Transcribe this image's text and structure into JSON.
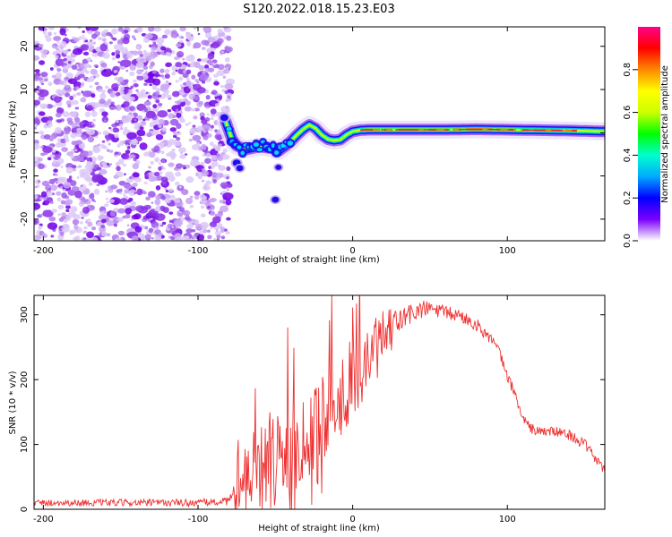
{
  "figure": {
    "title": "S120.2022.018.15.23.E03"
  },
  "chart_data": [
    {
      "type": "heatmap",
      "name": "spectrogram",
      "xlabel": "Height of straight line (km)",
      "ylabel": "Frequency (Hz)",
      "xlim": [
        -206,
        163
      ],
      "ylim": [
        -25,
        24.5
      ],
      "xticks": [
        -200,
        -100,
        0,
        100
      ],
      "yticks": [
        -20,
        -10,
        0,
        10,
        20
      ],
      "noise_region_x": [
        -206,
        -82
      ],
      "ridge": {
        "x": [
          -82,
          -78,
          -75,
          -72,
          -68,
          -64,
          -60,
          -56,
          -52,
          -48,
          -44,
          -40,
          -36,
          -32,
          -28,
          -24,
          -20,
          -16,
          -12,
          -8,
          -4,
          0,
          5,
          10,
          20,
          40,
          60,
          80,
          100,
          120,
          140,
          163
        ],
        "y": [
          2.5,
          -1.5,
          -3,
          -3.5,
          -3.8,
          -3.5,
          -3.2,
          -3.4,
          -3.6,
          -4.2,
          -3.2,
          -2,
          -0.5,
          0.8,
          1.8,
          1,
          -0.5,
          -1.5,
          -1.8,
          -1.6,
          -0.5,
          0.3,
          0.6,
          0.7,
          0.7,
          0.7,
          0.7,
          0.8,
          0.7,
          0.6,
          0.5,
          0.3
        ]
      },
      "spots": [
        {
          "x": -75,
          "y": -7,
          "amplitude": 0.2
        },
        {
          "x": -73,
          "y": -8.2,
          "amplitude": 0.15
        },
        {
          "x": -50,
          "y": -15.5,
          "amplitude": 0.15
        },
        {
          "x": -83,
          "y": 3.5,
          "amplitude": 0.2
        },
        {
          "x": -48,
          "y": -8,
          "amplitude": 0.1
        }
      ],
      "colorbar": {
        "label": "Normalized spectral amplitude",
        "range": [
          0,
          1
        ],
        "ticks": [
          "0.0",
          "0.2",
          "0.4",
          "0.6",
          "0.8"
        ],
        "colors": [
          "#ffffff",
          "#7a00ff",
          "#0000ff",
          "#00aaff",
          "#00ffcc",
          "#00ff00",
          "#ccff00",
          "#ffff00",
          "#ff8800",
          "#ff0000",
          "#ff0088"
        ]
      }
    },
    {
      "type": "line",
      "name": "snr",
      "xlabel": "Height of straight line (km)",
      "ylabel": "SNR (10 * v/v)",
      "xlim": [
        -206,
        163
      ],
      "ylim": [
        0,
        330
      ],
      "xticks": [
        -200,
        -100,
        0,
        100
      ],
      "yticks": [
        0,
        100,
        200,
        300
      ],
      "color": "#ee3030",
      "envelope": {
        "x": [
          -206,
          -150,
          -100,
          -80,
          -72,
          -68,
          -60,
          -50,
          -40,
          -30,
          -20,
          -10,
          0,
          10,
          20,
          30,
          40,
          50,
          60,
          70,
          80,
          90,
          95,
          100,
          105,
          110,
          115,
          120,
          130,
          140,
          150,
          163
        ],
        "y": [
          10,
          10,
          10,
          12,
          25,
          55,
          70,
          80,
          95,
          115,
          150,
          175,
          200,
          230,
          262,
          290,
          305,
          310,
          303,
          298,
          285,
          262,
          240,
          205,
          178,
          140,
          125,
          120,
          120,
          115,
          100,
          60
        ]
      },
      "noise_amplitude": {
        "x": [
          -206,
          -80,
          -72,
          -60,
          -50,
          -40,
          -20,
          0,
          20,
          30,
          50,
          80,
          110,
          163
        ],
        "y": [
          5,
          6,
          50,
          70,
          75,
          70,
          75,
          65,
          45,
          22,
          12,
          10,
          8,
          8
        ]
      }
    }
  ]
}
